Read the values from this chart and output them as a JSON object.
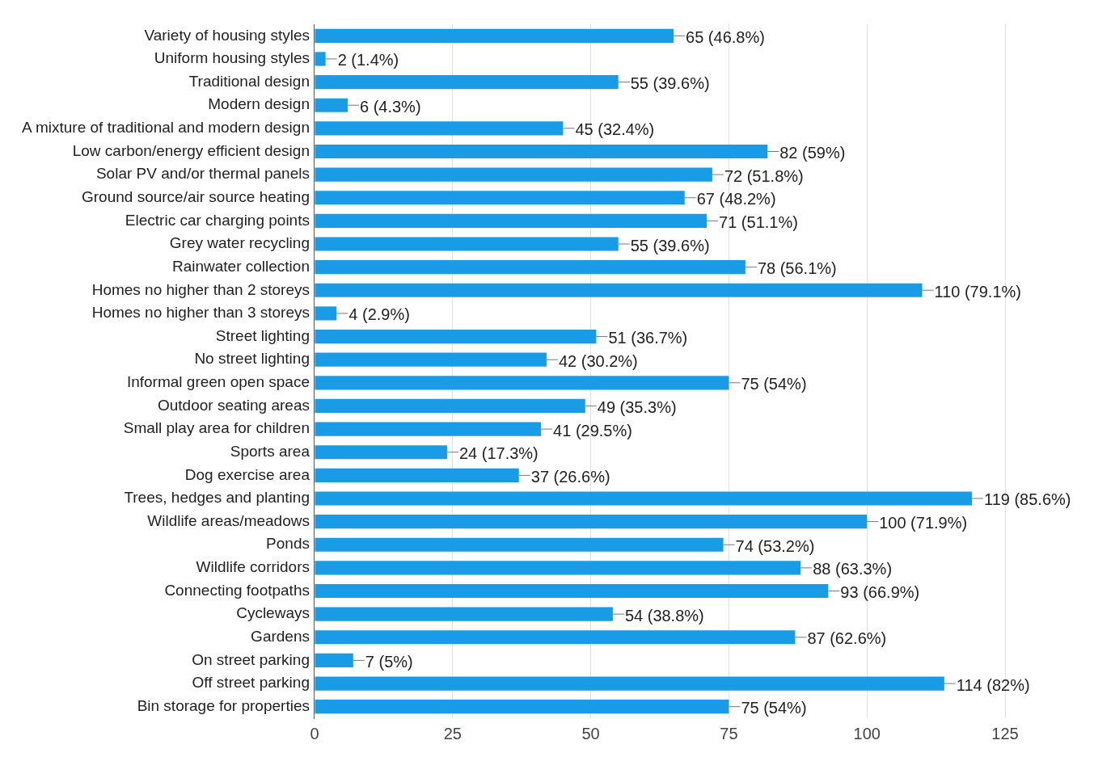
{
  "chart_data": {
    "type": "bar",
    "orientation": "horizontal",
    "categories": [
      "Variety of housing styles",
      "Uniform housing styles",
      "Traditional design",
      "Modern design",
      "A mixture of traditional and modern design",
      "Low carbon/energy efficient design",
      "Solar PV and/or thermal panels",
      "Ground source/air source heating",
      "Electric car charging points",
      "Grey water recycling",
      "Rainwater collection",
      "Homes no higher than 2 storeys",
      "Homes no higher than 3 storeys",
      "Street lighting",
      "No street lighting",
      "Informal green open space",
      "Outdoor seating areas",
      "Small play area for children",
      "Sports area",
      "Dog exercise area",
      "Trees, hedges and planting",
      "Wildlife areas/meadows",
      "Ponds",
      "Wildlife corridors",
      "Connecting footpaths",
      "Cycleways",
      "Gardens",
      "On street parking",
      "Off street parking",
      "Bin storage for properties"
    ],
    "values": [
      65,
      2,
      55,
      6,
      45,
      82,
      72,
      67,
      71,
      55,
      78,
      110,
      4,
      51,
      42,
      75,
      49,
      41,
      24,
      37,
      119,
      100,
      74,
      88,
      93,
      54,
      87,
      7,
      114,
      75
    ],
    "value_labels": [
      "65 (46.8%)",
      "2 (1.4%)",
      "55 (39.6%)",
      "6 (4.3%)",
      "45 (32.4%)",
      "82 (59%)",
      "72 (51.8%)",
      "67 (48.2%)",
      "71 (51.1%)",
      "55 (39.6%)",
      "78 (56.1%)",
      "110 (79.1%)",
      "4 (2.9%)",
      "51 (36.7%)",
      "42 (30.2%)",
      "75 (54%)",
      "49 (35.3%)",
      "41 (29.5%)",
      "24 (17.3%)",
      "37 (26.6%)",
      "119 (85.6%)",
      "100 (71.9%)",
      "74 (53.2%)",
      "88 (63.3%)",
      "93 (66.9%)",
      "54 (38.8%)",
      "87 (62.6%)",
      "7 (5%)",
      "114 (82%)",
      "75 (54%)"
    ],
    "color": "#1a9be6",
    "xlim": [
      0,
      125
    ],
    "xticks": [
      0,
      25,
      50,
      75,
      100,
      125
    ],
    "grid": "x",
    "legend": false
  }
}
